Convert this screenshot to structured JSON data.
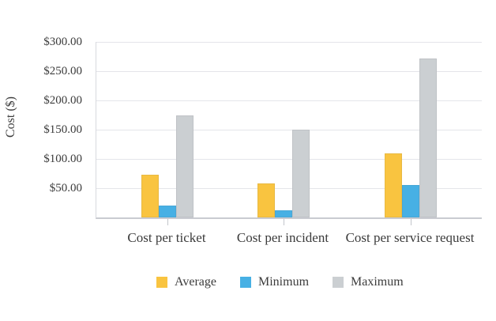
{
  "chart_data": {
    "type": "bar",
    "title": "",
    "categories": [
      "Cost per ticket",
      "Cost per incident",
      "Cost per service request"
    ],
    "series": [
      {
        "name": "Average",
        "color": "#f9c440",
        "values": [
          73,
          58,
          110
        ]
      },
      {
        "name": "Minimum",
        "color": "#47b0e4",
        "values": [
          20,
          12,
          55
        ]
      },
      {
        "name": "Maximum",
        "color": "#cbcfd2",
        "values": [
          175,
          150,
          271
        ]
      }
    ],
    "xlabel": "",
    "ylabel": "Cost ($)",
    "ylim": [
      0,
      300
    ],
    "ytick_step": 50,
    "ytick_labels": [
      "$50.00",
      "$100.00",
      "$150.00",
      "$200.00",
      "$250.00",
      "$300.00"
    ],
    "grid": true,
    "legend_position": "bottom"
  },
  "colors": {
    "background": "#ffffff",
    "gridline": "#e4e5ea",
    "axis_line": "#c9cbd1",
    "text": "#3b3b3b"
  }
}
